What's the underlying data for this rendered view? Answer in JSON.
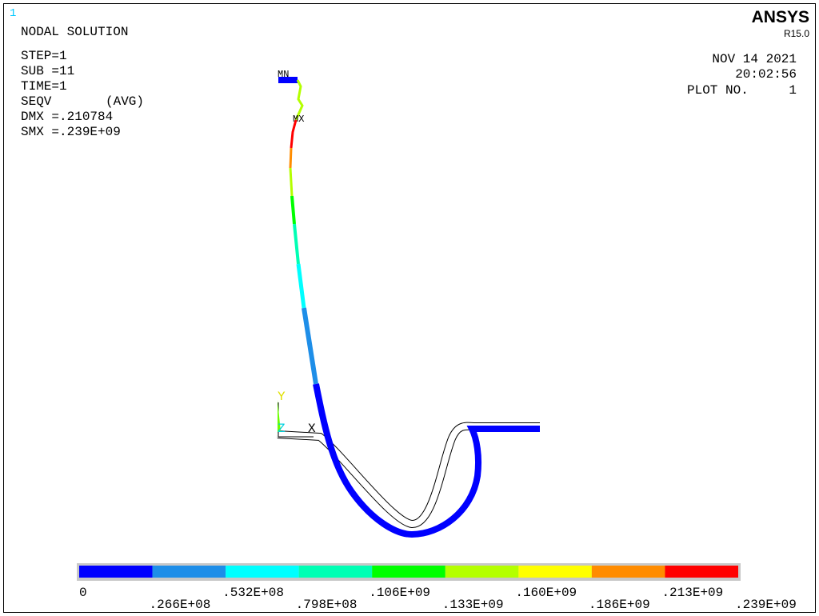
{
  "window_number": "1",
  "header": {
    "title": "NODAL SOLUTION",
    "lines": [
      "STEP=1",
      "SUB =11",
      "TIME=1"
    ],
    "result": "SEQV",
    "averaging": "(AVG)",
    "dmx": "DMX =.210784",
    "smx": "SMX =.239E+09"
  },
  "brand": {
    "name": "ANSYS",
    "version": "R15.0"
  },
  "plot_info": {
    "date": "NOV 14 2021",
    "time": "20:02:56",
    "plot_no_label": "PLOT NO.",
    "plot_no": "1"
  },
  "markers": {
    "min": "MN",
    "max": "MX"
  },
  "triad": {
    "y": "Y",
    "z": "Z",
    "x": "X"
  },
  "legend": {
    "labels": [
      "0",
      ".266E+08",
      ".532E+08",
      ".798E+08",
      ".106E+09",
      ".133E+09",
      ".160E+09",
      ".186E+09",
      ".213E+09",
      ".239E+09"
    ],
    "colors": [
      "#0000ff",
      "#1e8ee8",
      "#00ffff",
      "#00ffb4",
      "#00ff00",
      "#b4ff00",
      "#ffff00",
      "#ff8c00",
      "#ff0000"
    ]
  }
}
